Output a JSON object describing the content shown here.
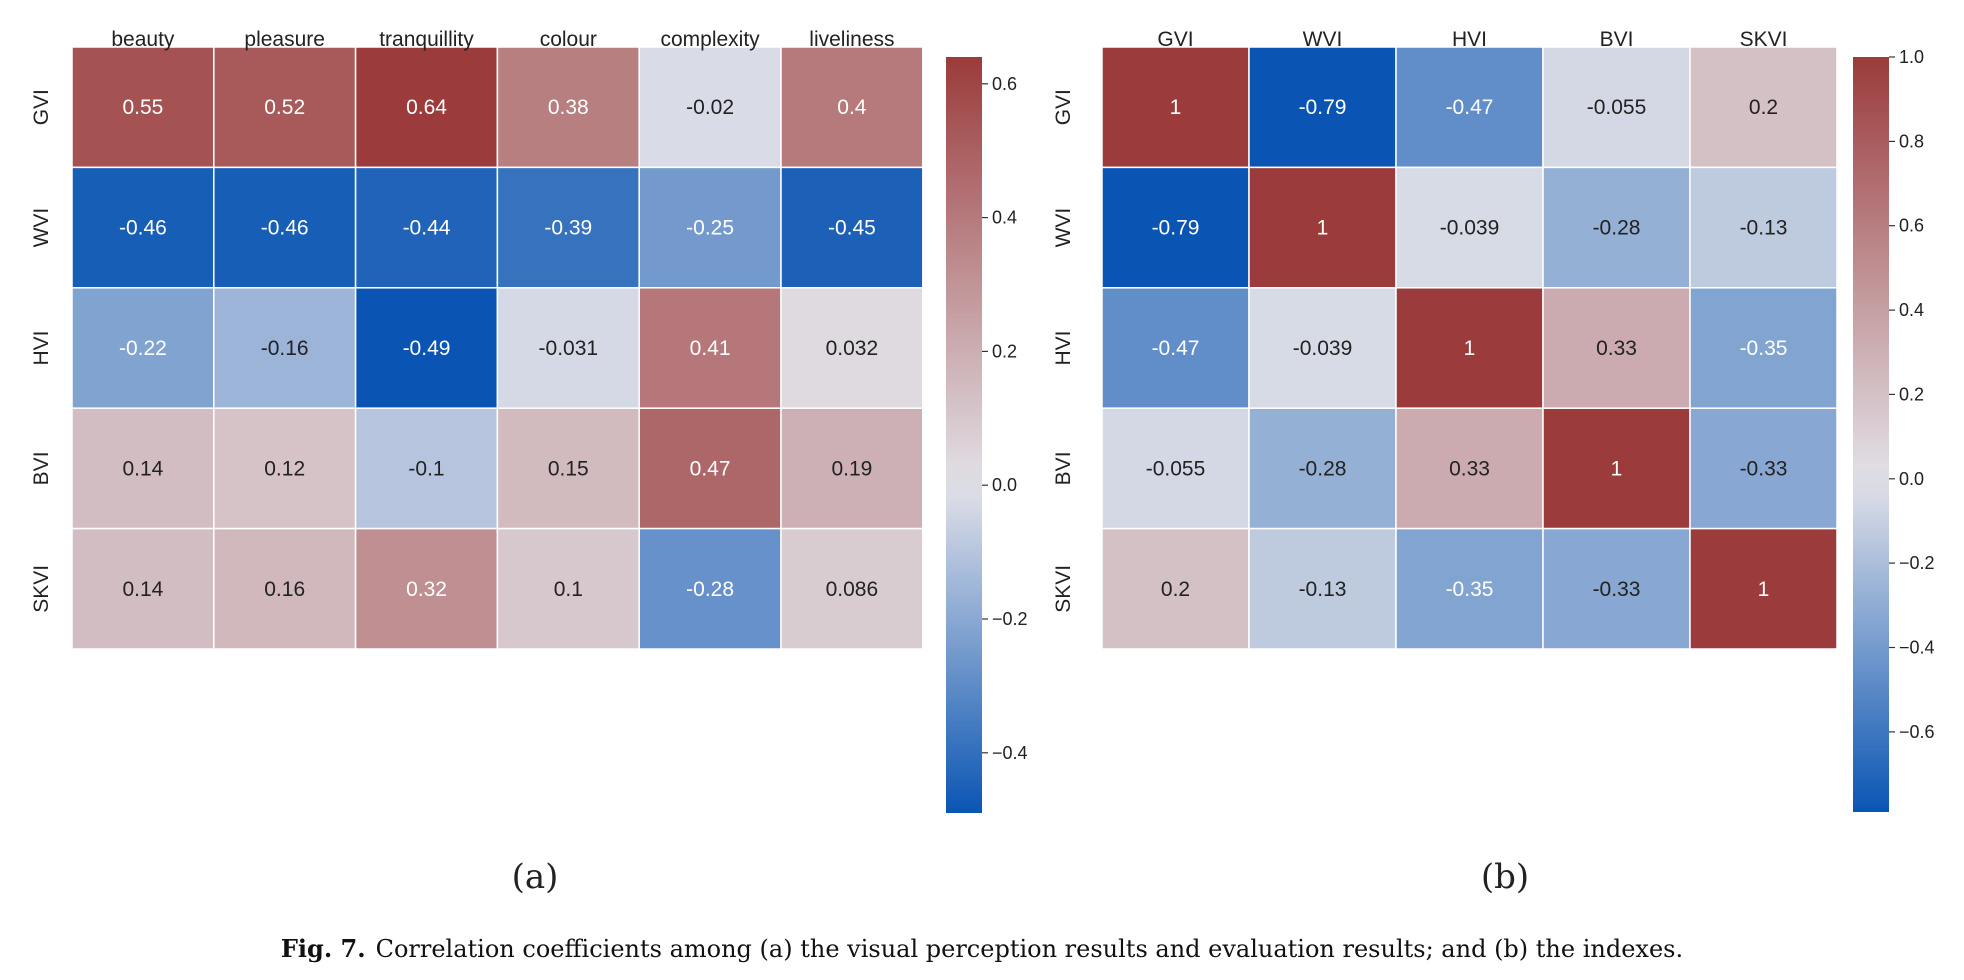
{
  "chart_data": [
    {
      "type": "heatmap",
      "panel_label": "(a)",
      "x_labels": [
        "beauty",
        "pleasure",
        "tranquillity",
        "colour",
        "complexity",
        "liveliness"
      ],
      "y_labels": [
        "GVI",
        "WVI",
        "HVI",
        "BVI",
        "SKVI"
      ],
      "values": [
        [
          0.55,
          0.52,
          0.64,
          0.38,
          -0.02,
          0.4
        ],
        [
          -0.46,
          -0.46,
          -0.44,
          -0.39,
          -0.25,
          -0.45
        ],
        [
          -0.22,
          -0.16,
          -0.49,
          -0.031,
          0.41,
          0.032
        ],
        [
          0.14,
          0.12,
          -0.1,
          0.15,
          0.47,
          0.19
        ],
        [
          0.14,
          0.16,
          0.32,
          0.1,
          -0.28,
          0.086
        ]
      ],
      "labels": [
        [
          "0.55",
          "0.52",
          "0.64",
          "0.38",
          "-0.02",
          "0.4"
        ],
        [
          "-0.46",
          "-0.46",
          "-0.44",
          "-0.39",
          "-0.25",
          "-0.45"
        ],
        [
          "-0.22",
          "-0.16",
          "-0.49",
          "-0.031",
          "0.41",
          "0.032"
        ],
        [
          "0.14",
          "0.12",
          "-0.1",
          "0.15",
          "0.47",
          "0.19"
        ],
        [
          "0.14",
          "0.16",
          "0.32",
          "0.1",
          "-0.28",
          "0.086"
        ]
      ],
      "vmin": -0.49,
      "vmax": 0.64,
      "colorbar_ticks": [
        0.6,
        0.4,
        0.2,
        0.0,
        -0.2,
        -0.4
      ],
      "colorbar_tick_labels": [
        "0.6",
        "0.4",
        "0.2",
        "0.0",
        "−0.2",
        "−0.4"
      ],
      "colormap": "vlag",
      "colors": {
        "negative": "#0a55b3",
        "neutral": "#e2e2e8",
        "positive": "#9b3b3b"
      }
    },
    {
      "type": "heatmap",
      "panel_label": "(b)",
      "x_labels": [
        "GVI",
        "WVI",
        "HVI",
        "BVI",
        "SKVI"
      ],
      "y_labels": [
        "GVI",
        "WVI",
        "HVI",
        "BVI",
        "SKVI"
      ],
      "values": [
        [
          1,
          -0.79,
          -0.47,
          -0.055,
          0.2
        ],
        [
          -0.79,
          1,
          -0.039,
          -0.28,
          -0.13
        ],
        [
          -0.47,
          -0.039,
          1,
          0.33,
          -0.35
        ],
        [
          -0.055,
          -0.28,
          0.33,
          1,
          -0.33
        ],
        [
          0.2,
          -0.13,
          -0.35,
          -0.33,
          1
        ]
      ],
      "labels": [
        [
          "1",
          "-0.79",
          "-0.47",
          "-0.055",
          "0.2"
        ],
        [
          "-0.79",
          "1",
          "-0.039",
          "-0.28",
          "-0.13"
        ],
        [
          "-0.47",
          "-0.039",
          "1",
          "0.33",
          "-0.35"
        ],
        [
          "-0.055",
          "-0.28",
          "0.33",
          "1",
          "-0.33"
        ],
        [
          "0.2",
          "-0.13",
          "-0.35",
          "-0.33",
          "1"
        ]
      ],
      "vmin": -0.79,
      "vmax": 1.0,
      "colorbar_ticks": [
        1.0,
        0.8,
        0.6,
        0.4,
        0.2,
        0.0,
        -0.2,
        -0.4,
        -0.6
      ],
      "colorbar_tick_labels": [
        "1.0",
        "0.8",
        "0.6",
        "0.4",
        "0.2",
        "0.0",
        "−0.2",
        "−0.4",
        "−0.6"
      ],
      "colormap": "vlag",
      "colors": {
        "negative": "#0a55b3",
        "neutral": "#e2e2e8",
        "positive": "#9b3b3b"
      }
    }
  ],
  "caption": {
    "label": "Fig. 7.",
    "text": "Correlation coefficients among (a) the visual perception results and evaluation results; and (b) the indexes."
  }
}
